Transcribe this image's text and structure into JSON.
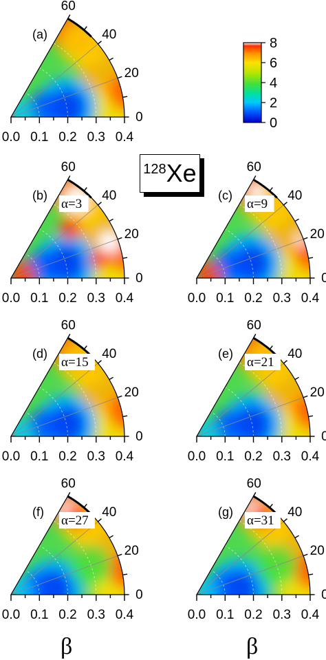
{
  "figure": {
    "nucleus_mass": "128",
    "nucleus_symbol": "Xe",
    "xlabel_left": "β",
    "xlabel_right": "β"
  },
  "colorbar": {
    "min": 0,
    "max": 8,
    "ticks": [
      "8",
      "6",
      "4",
      "2",
      "0"
    ],
    "colors": [
      "#0000c8",
      "#0050ff",
      "#00c8ff",
      "#00e0a0",
      "#40e040",
      "#b4e600",
      "#ffe000",
      "#ff9600",
      "#ff3000",
      "#ffffff"
    ]
  },
  "chart_data": [
    {
      "type": "heatmap",
      "projection": "polar-sector",
      "label": "(a)",
      "alpha": "",
      "x_ticks": [
        "0.0",
        "0.1",
        "0.2",
        "0.3",
        "0.4"
      ],
      "gamma_ticks": [
        "0",
        "20",
        "40",
        "60"
      ],
      "xlim": [
        0,
        0.4
      ],
      "gamma_range": [
        0,
        60
      ],
      "zlim": [
        0,
        8
      ],
      "minimum": {
        "beta": 0.2,
        "gamma": 10
      },
      "saturated_region": "none"
    },
    {
      "type": "heatmap",
      "projection": "polar-sector",
      "label": "(b)",
      "alpha": "α=3",
      "x_ticks": [
        "0.0",
        "0.1",
        "0.2",
        "0.3",
        "0.4"
      ],
      "gamma_ticks": [
        "0",
        "20",
        "40",
        "60"
      ],
      "xlim": [
        0,
        0.4
      ],
      "gamma_range": [
        0,
        60
      ],
      "zlim": [
        0,
        8
      ],
      "minimum": {
        "beta": 0.2,
        "gamma": 15
      },
      "saturated_region": "large"
    },
    {
      "type": "heatmap",
      "projection": "polar-sector",
      "label": "(c)",
      "alpha": "α=9",
      "x_ticks": [
        "0.0",
        "0.1",
        "0.2",
        "0.3",
        "0.4"
      ],
      "gamma_ticks": [
        "0",
        "20",
        "40",
        "60"
      ],
      "xlim": [
        0,
        0.4
      ],
      "gamma_range": [
        0,
        60
      ],
      "zlim": [
        0,
        8
      ],
      "minimum": {
        "beta": 0.2,
        "gamma": 15
      },
      "saturated_region": "small"
    },
    {
      "type": "heatmap",
      "projection": "polar-sector",
      "label": "(d)",
      "alpha": "α=15",
      "x_ticks": [
        "0.0",
        "0.1",
        "0.2",
        "0.3",
        "0.4"
      ],
      "gamma_ticks": [
        "0",
        "20",
        "40",
        "60"
      ],
      "xlim": [
        0,
        0.4
      ],
      "gamma_range": [
        0,
        60
      ],
      "zlim": [
        0,
        8
      ],
      "minimum": {
        "beta": 0.2,
        "gamma": 12
      },
      "saturated_region": "none"
    },
    {
      "type": "heatmap",
      "projection": "polar-sector",
      "label": "(e)",
      "alpha": "α=21",
      "x_ticks": [
        "0.0",
        "0.1",
        "0.2",
        "0.3",
        "0.4"
      ],
      "gamma_ticks": [
        "0",
        "20",
        "40",
        "60"
      ],
      "xlim": [
        0,
        0.4
      ],
      "gamma_range": [
        0,
        60
      ],
      "zlim": [
        0,
        8
      ],
      "minimum": {
        "beta": 0.2,
        "gamma": 12
      },
      "saturated_region": "none"
    },
    {
      "type": "heatmap",
      "projection": "polar-sector",
      "label": "(f)",
      "alpha": "α=27",
      "x_ticks": [
        "0.0",
        "0.1",
        "0.2",
        "0.3",
        "0.4"
      ],
      "gamma_ticks": [
        "0",
        "20",
        "40",
        "60"
      ],
      "xlim": [
        0,
        0.4
      ],
      "gamma_range": [
        0,
        60
      ],
      "zlim": [
        0,
        8
      ],
      "minimum": {
        "beta": 0.15,
        "gamma": 8
      },
      "saturated_region": "top"
    },
    {
      "type": "heatmap",
      "projection": "polar-sector",
      "label": "(g)",
      "alpha": "α=31",
      "x_ticks": [
        "0.0",
        "0.1",
        "0.2",
        "0.3",
        "0.4"
      ],
      "gamma_ticks": [
        "0",
        "20",
        "40",
        "60"
      ],
      "xlim": [
        0,
        0.4
      ],
      "gamma_range": [
        0,
        60
      ],
      "zlim": [
        0,
        8
      ],
      "minimum": {
        "beta": 0.15,
        "gamma": 8
      },
      "saturated_region": "top"
    }
  ]
}
